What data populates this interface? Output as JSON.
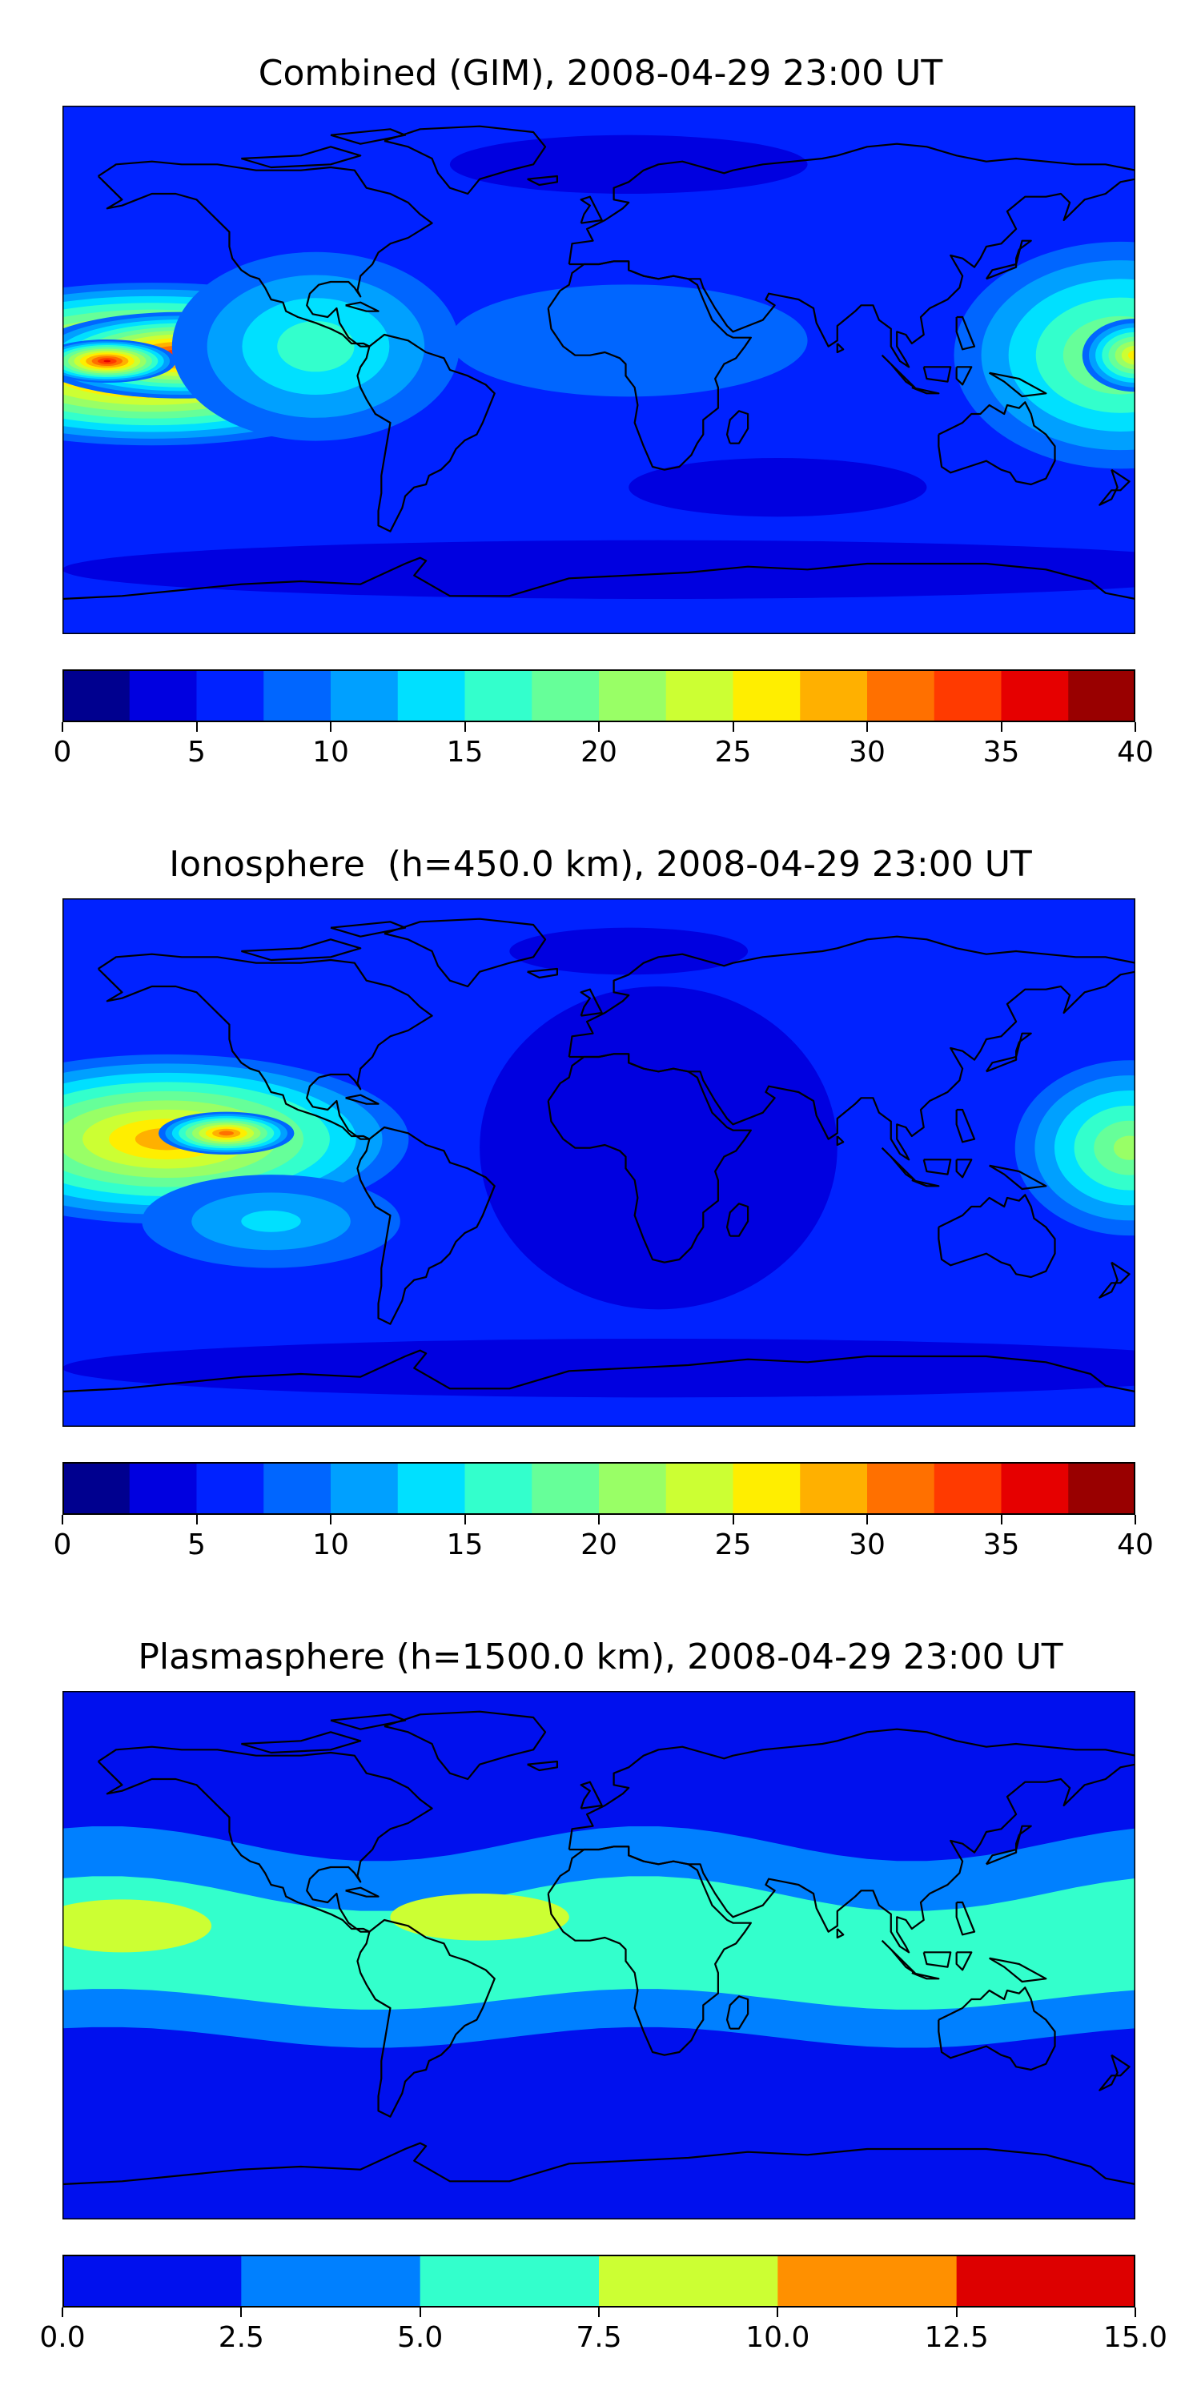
{
  "colorbars": {
    "tec_colors": [
      "#00008f",
      "#0000e0",
      "#0022ff",
      "#0066ff",
      "#00a0ff",
      "#00e0ff",
      "#33ffcc",
      "#66ff99",
      "#99ff66",
      "#ccff33",
      "#ffee00",
      "#ffb000",
      "#ff7000",
      "#ff3a00",
      "#e60000",
      "#990000"
    ],
    "plasma_colors": [
      "#0010ee",
      "#0080ff",
      "#33ffcc",
      "#ccff33",
      "#ff9000",
      "#dd0000"
    ]
  },
  "panels": [
    {
      "id": "combined",
      "title": "Combined (GIM), 2008-04-29 23:00 UT",
      "cbar": {
        "min": 0,
        "max": 40,
        "ticks": [
          "0",
          "5",
          "10",
          "15",
          "20",
          "25",
          "30",
          "35",
          "40"
        ],
        "levels": 16,
        "palette": "tec_colors"
      },
      "map": {
        "background_level": 2,
        "blobs": [
          {
            "lon": -150,
            "lat": 2,
            "rx": 95,
            "ry": 30,
            "peak": 14.5
          },
          {
            "lon": -140,
            "lat": 5,
            "rx": 55,
            "ry": 16,
            "peak": 14.0
          },
          {
            "lon": -165,
            "lat": 3,
            "rx": 25,
            "ry": 8,
            "peak": 14.0
          },
          {
            "lon": -95,
            "lat": 8,
            "rx": 60,
            "ry": 40,
            "peak": 6.5
          },
          {
            "lon": 175,
            "lat": 5,
            "rx": 65,
            "ry": 45,
            "peak": 8.5
          },
          {
            "lon": 180,
            "lat": 5,
            "rx": 20,
            "ry": 14,
            "peak": 10.5
          },
          {
            "lon": 10,
            "lat": 10,
            "rx": 110,
            "ry": 35,
            "peak": 3.6
          }
        ],
        "dark_regions": [
          {
            "lon": 10,
            "lat": 70,
            "rx": 60,
            "ry": 10,
            "level": 1
          },
          {
            "lon": 20,
            "lat": -68,
            "rx": 200,
            "ry": 10,
            "level": 1
          },
          {
            "lon": 60,
            "lat": -40,
            "rx": 50,
            "ry": 10,
            "level": 1
          }
        ]
      }
    },
    {
      "id": "ionosphere",
      "title": "Ionosphere  (h=450.0 km), 2008-04-29 23:00 UT",
      "cbar": {
        "min": 0,
        "max": 40,
        "ticks": [
          "0",
          "5",
          "10",
          "15",
          "20",
          "25",
          "30",
          "35",
          "40"
        ],
        "levels": 16,
        "palette": "tec_colors"
      },
      "map": {
        "background_level": 2,
        "blobs": [
          {
            "lon": -145,
            "lat": 8,
            "rx": 90,
            "ry": 32,
            "peak": 11.6
          },
          {
            "lon": -125,
            "lat": 10,
            "rx": 25,
            "ry": 8,
            "peak": 12.5
          },
          {
            "lon": 178,
            "lat": 5,
            "rx": 45,
            "ry": 35,
            "peak": 8.2
          },
          {
            "lon": -110,
            "lat": -20,
            "rx": 60,
            "ry": 22,
            "peak": 5.0
          }
        ],
        "dark_regions": [
          {
            "lon": 20,
            "lat": 5,
            "rx": 60,
            "ry": 55,
            "level": 1
          },
          {
            "lon": 10,
            "lat": 72,
            "rx": 40,
            "ry": 8,
            "level": 1
          },
          {
            "lon": 20,
            "lat": -70,
            "rx": 200,
            "ry": 10,
            "level": 1
          }
        ]
      }
    },
    {
      "id": "plasmasphere",
      "title": "Plasmasphere (h=1500.0 km), 2008-04-29 23:00 UT",
      "cbar": {
        "min": 0.0,
        "max": 15.0,
        "ticks": [
          "0.0",
          "2.5",
          "5.0",
          "7.5",
          "10.0",
          "12.5",
          "15.0"
        ],
        "levels": 6,
        "palette": "plasma_colors"
      },
      "map": {
        "background_level": 0,
        "bands": [
          {
            "lat_center": 5,
            "half_width": 33,
            "level": 1
          },
          {
            "lat_center": 3,
            "half_width": 18,
            "level": 2
          }
        ],
        "blobs": [
          {
            "lon": -160,
            "lat": 10,
            "rx": 30,
            "ry": 9,
            "level": 3
          },
          {
            "lon": -40,
            "lat": 13,
            "rx": 30,
            "ry": 8,
            "level": 3
          }
        ]
      }
    }
  ]
}
